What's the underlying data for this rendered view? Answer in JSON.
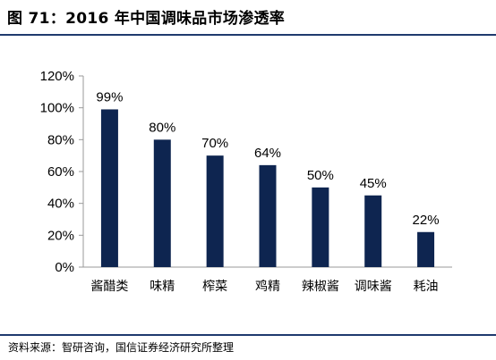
{
  "title": "图 71：2016 年中国调味品市场渗透率",
  "source": "资料来源：智研咨询，国信证券经济研究所整理",
  "colors": {
    "bar": "#0e2550",
    "rule": "#1f3a6e",
    "axis": "#9a9a9a"
  },
  "chart_data": {
    "type": "bar",
    "categories": [
      "酱醋类",
      "味精",
      "榨菜",
      "鸡精",
      "辣椒酱",
      "调味酱",
      "耗油"
    ],
    "values": [
      99,
      80,
      70,
      64,
      50,
      45,
      22
    ],
    "data_labels": [
      "99%",
      "80%",
      "70%",
      "64%",
      "50%",
      "45%",
      "22%"
    ],
    "yticks": [
      "0%",
      "20%",
      "40%",
      "60%",
      "80%",
      "100%",
      "120%"
    ],
    "ylim": [
      0,
      120
    ],
    "title": "",
    "xlabel": "",
    "ylabel": "",
    "grid": false,
    "legend": "none"
  }
}
